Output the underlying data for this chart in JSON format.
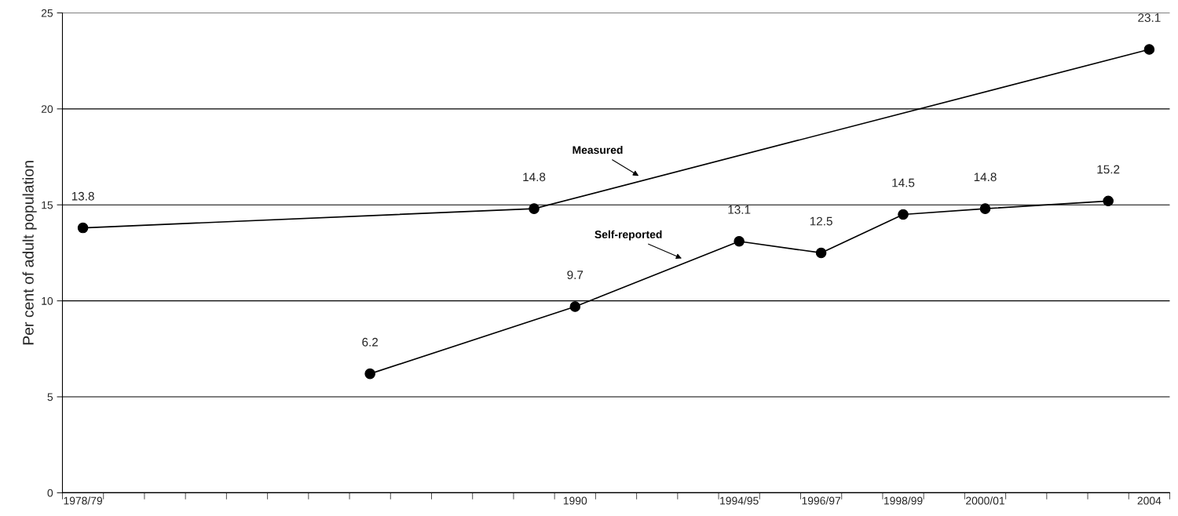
{
  "chart_data": {
    "type": "line",
    "ylabel": "Per cent of adult population",
    "categories": [
      "1978/79",
      null,
      null,
      null,
      null,
      null,
      null,
      null,
      null,
      null,
      null,
      null,
      "1990",
      null,
      null,
      null,
      "1994/95",
      null,
      "1996/97",
      null,
      "1998/99",
      null,
      "2000/01",
      null,
      null,
      null,
      "2004"
    ],
    "series": [
      {
        "name": "Measured",
        "color": "#000000",
        "values": [
          13.8,
          null,
          null,
          null,
          null,
          null,
          null,
          null,
          null,
          null,
          null,
          14.8,
          null,
          null,
          null,
          null,
          null,
          null,
          null,
          null,
          null,
          null,
          null,
          null,
          null,
          null,
          23.1
        ]
      },
      {
        "name": "Self-reported",
        "color": "#000000",
        "values": [
          null,
          null,
          null,
          null,
          null,
          null,
          null,
          6.2,
          null,
          null,
          null,
          null,
          9.7,
          null,
          null,
          null,
          13.1,
          null,
          12.5,
          null,
          14.5,
          null,
          14.8,
          null,
          null,
          15.2,
          null
        ]
      }
    ],
    "ylim": [
      0,
      25
    ],
    "yticks": [
      0,
      5,
      10,
      15,
      20,
      25
    ],
    "grid": "y",
    "legend": false,
    "marker": "circle",
    "line_style": "solid",
    "data_labels": true
  }
}
